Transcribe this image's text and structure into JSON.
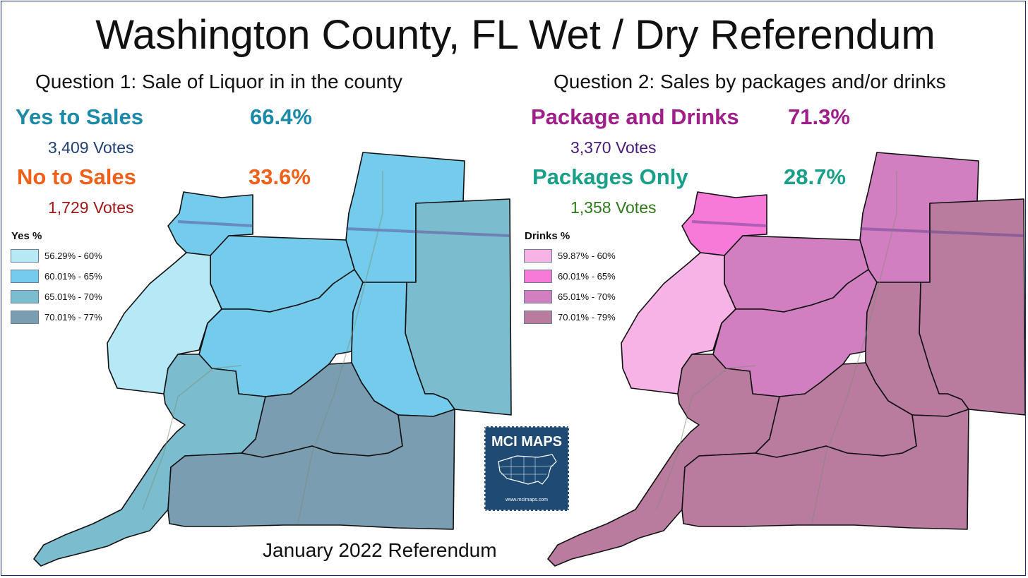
{
  "title": "Washington County, FL Wet / Dry Referendum",
  "footer": "January 2022 Referendum",
  "question1": {
    "heading": "Question 1:  Sale of Liquor in in the county",
    "option_a": {
      "label": "Yes to Sales",
      "percent": "66.4%",
      "votes": "3,409 Votes",
      "color": "#1a8aa8",
      "votes_color": "#1f3f73"
    },
    "option_b": {
      "label": "No to Sales",
      "percent": "33.6%",
      "votes": "1,729 Votes",
      "color": "#f0601a",
      "votes_color": "#a01818"
    },
    "legend": {
      "title": "Yes  %",
      "items": [
        {
          "label": "56.29% - 60%",
          "color": "#b6e8f5"
        },
        {
          "label": "60.01% - 65%",
          "color": "#74cbec"
        },
        {
          "label": "65.01% - 70%",
          "color": "#7cbccf"
        },
        {
          "label": "70.01% - 77%",
          "color": "#7b9db2"
        }
      ]
    }
  },
  "question2": {
    "heading": "Question 2: Sales by packages and/or drinks",
    "option_a": {
      "label": "Package and Drinks",
      "percent": "71.3%",
      "votes": "3,370 Votes",
      "color": "#a01e8a",
      "votes_color": "#4a1a7a"
    },
    "option_b": {
      "label": "Packages Only",
      "percent": "28.7%",
      "votes": "1,358 Votes",
      "color": "#1aa088",
      "votes_color": "#2c7a18"
    },
    "legend": {
      "title": "Drinks %",
      "items": [
        {
          "label": "59.87% - 60%",
          "color": "#f7b3e6"
        },
        {
          "label": "60.01% - 65%",
          "color": "#f779d8"
        },
        {
          "label": "65.01% - 70%",
          "color": "#d27fc2"
        },
        {
          "label": "70.01% - 79%",
          "color": "#b97c9f"
        }
      ]
    }
  },
  "districts": [
    {
      "id": "north-holmes",
      "class1": 1,
      "class2": 2
    },
    {
      "id": "northwest",
      "class1": 1,
      "class2": 1
    },
    {
      "id": "east-border",
      "class1": 2,
      "class2": 3
    },
    {
      "id": "central-north",
      "class1": 1,
      "class2": 2
    },
    {
      "id": "west",
      "class1": 0,
      "class2": 0
    },
    {
      "id": "central",
      "class1": 1,
      "class2": 2
    },
    {
      "id": "central-east",
      "class1": 1,
      "class2": 3
    },
    {
      "id": "southwest-arm",
      "class1": 2,
      "class2": 3
    },
    {
      "id": "south-central",
      "class1": 3,
      "class2": 3
    },
    {
      "id": "southeast",
      "class1": 3,
      "class2": 3
    }
  ],
  "badge": {
    "title": "MCI MAPS",
    "url": "www.mcimaps.com",
    "bg": "#1f4a73"
  }
}
